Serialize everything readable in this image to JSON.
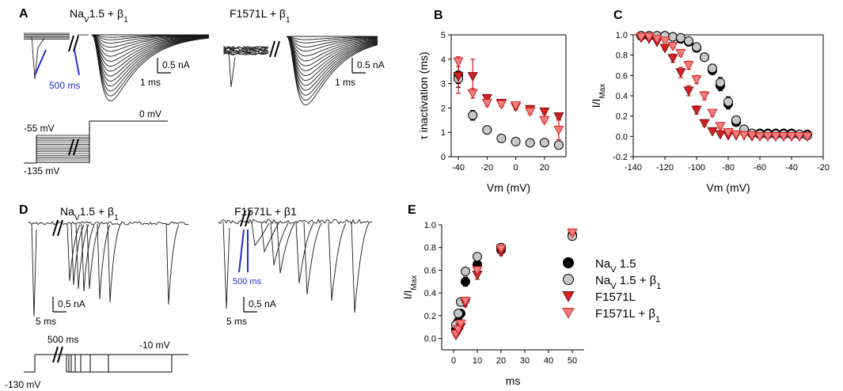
{
  "colors": {
    "black": "#000000",
    "gray": "#c8c8c8",
    "red": "#d42020",
    "pink": "#f08080",
    "trace": "#1a1a1a",
    "blue": "#1f2fd0",
    "errorbar_red": "#cc2020"
  },
  "panelA": {
    "letter": "A",
    "left_title": {
      "main": "Na",
      "sub": "V",
      "rest": "1.5 + β",
      "sub2": "1"
    },
    "right_title": {
      "main": "F1571L + β",
      "sub": "1"
    },
    "scale_current": "0.5 nA",
    "scale_time": "1 ms",
    "gap_label": "500 ms",
    "protocol_labels": {
      "test": "0 mV",
      "top_prepulse": "-55 mV",
      "bottom_prepulse": "-135 mV"
    }
  },
  "panelD": {
    "letter": "D",
    "left_title": {
      "main": "Na",
      "sub": "V",
      "rest": "1.5 + β",
      "sub2": "1"
    },
    "right_title": {
      "main": "F1571L + β1"
    },
    "scale_current": "0,5 nA",
    "scale_time": "5 ms",
    "gap_label": "500 ms",
    "protocol_labels": {
      "prepulse": "500 ms",
      "test": "-10 mV",
      "hold": "-130 mV"
    }
  },
  "chart_data": [
    {
      "id": "B",
      "letter": "B",
      "type": "scatter",
      "xlabel": "Vm (mV)",
      "ylabel": "τ inactivation (ms)",
      "xlim": [
        -45,
        35
      ],
      "ylim": [
        0,
        5
      ],
      "xticks": [
        -40,
        -20,
        0,
        20
      ],
      "yticks": [
        0,
        1,
        2,
        3,
        4,
        5
      ],
      "series": [
        {
          "name": "NaV 1.5",
          "marker": "circle",
          "fill": "black",
          "x": [
            -40
          ],
          "y": [
            3.35
          ],
          "err": [
            0.5
          ]
        },
        {
          "name": "NaV 1.5 + β1",
          "marker": "circle",
          "fill": "gray",
          "x": [
            -40,
            -30,
            -20,
            -10,
            0,
            10,
            20,
            30
          ],
          "y": [
            3.2,
            1.7,
            1.1,
            0.75,
            0.62,
            0.57,
            0.58,
            0.48
          ],
          "err": [
            0.2,
            0.2,
            0.12,
            0.08,
            0.06,
            0.05,
            0.05,
            0.05
          ]
        },
        {
          "name": "F1571L",
          "marker": "tri-down",
          "fill": "red",
          "x": [
            -40,
            -30,
            -20,
            -10,
            0,
            10,
            20,
            30
          ],
          "y": [
            3.3,
            3.3,
            2.4,
            2.2,
            2.05,
            1.95,
            1.85,
            1.65
          ],
          "err": [
            0.7,
            0.7,
            0.15,
            0.12,
            0.12,
            0.1,
            0.1,
            0.1
          ]
        },
        {
          "name": "F1571L + β1",
          "marker": "tri-down",
          "fill": "pink",
          "x": [
            -40,
            -30,
            -20,
            -10,
            0,
            10,
            20,
            30
          ],
          "y": [
            3.9,
            2.6,
            2.2,
            2.15,
            2.1,
            1.85,
            1.5,
            1.1
          ],
          "err": [
            0.2,
            0.2,
            0.12,
            0.1,
            0.1,
            0.1,
            0.1,
            0.4
          ]
        }
      ]
    },
    {
      "id": "C",
      "letter": "C",
      "type": "scatter",
      "xlabel": "Vm (mV)",
      "ylabel": "I/I",
      "ylabel_sub": "Max",
      "xlim": [
        -140,
        -20
      ],
      "ylim": [
        -0.2,
        1.0
      ],
      "xticks": [
        -140,
        -120,
        -100,
        -80,
        -60,
        -40,
        -20
      ],
      "yticks": [
        -0.2,
        0.0,
        0.2,
        0.4,
        0.6,
        0.8,
        1.0
      ],
      "series": [
        {
          "name": "NaV 1.5",
          "marker": "circle",
          "fill": "black",
          "x": [
            -135,
            -130,
            -125,
            -120,
            -115,
            -110,
            -105,
            -100,
            -95,
            -90,
            -85,
            -80,
            -75,
            -70,
            -65,
            -60,
            -55,
            -50,
            -45,
            -40,
            -35,
            -30
          ],
          "y": [
            0.99,
            0.99,
            0.99,
            0.99,
            0.98,
            0.96,
            0.93,
            0.87,
            0.78,
            0.65,
            0.5,
            0.32,
            0.14,
            0.06,
            0.03,
            0.03,
            0.03,
            0.03,
            0.03,
            0.03,
            0.02,
            0.02
          ],
          "err": [
            0,
            0,
            0,
            0,
            0,
            0,
            0.01,
            0.02,
            0.03,
            0.04,
            0.05,
            0.05,
            0.03,
            0.01,
            0,
            0,
            0,
            0,
            0,
            0,
            0,
            0
          ]
        },
        {
          "name": "NaV 1.5 + β1",
          "marker": "circle",
          "fill": "gray",
          "x": [
            -135,
            -130,
            -125,
            -120,
            -115,
            -110,
            -105,
            -100,
            -95,
            -90,
            -85,
            -80,
            -75,
            -70,
            -65,
            -60,
            -55,
            -50,
            -45,
            -40,
            -35,
            -30
          ],
          "y": [
            0.99,
            0.99,
            0.99,
            0.99,
            0.98,
            0.97,
            0.94,
            0.88,
            0.78,
            0.67,
            0.53,
            0.34,
            0.16,
            0.07,
            0.03,
            0.02,
            0.02,
            0.02,
            0.02,
            0.02,
            0.02,
            0.01
          ],
          "err": [
            0,
            0,
            0,
            0,
            0,
            0,
            0.01,
            0.02,
            0.03,
            0.04,
            0.05,
            0.05,
            0.03,
            0.01,
            0,
            0,
            0,
            0,
            0,
            0,
            0,
            0
          ]
        },
        {
          "name": "F1571L",
          "marker": "tri-down",
          "fill": "red",
          "x": [
            -135,
            -130,
            -125,
            -120,
            -115,
            -110,
            -105,
            -100,
            -95,
            -90,
            -85,
            -80,
            -75,
            -70,
            -65,
            -60,
            -55,
            -50,
            -45,
            -40,
            -35,
            -30
          ],
          "y": [
            0.97,
            0.96,
            0.93,
            0.87,
            0.77,
            0.63,
            0.45,
            0.26,
            0.13,
            0.05,
            0.02,
            0.01,
            0.01,
            0.01,
            0.0,
            0.0,
            0.0,
            0.0,
            0.0,
            0.0,
            0.0,
            0.0
          ],
          "err": [
            0,
            0,
            0.01,
            0.02,
            0.04,
            0.05,
            0.05,
            0.04,
            0.03,
            0.01,
            0,
            0,
            0,
            0,
            0,
            0,
            0,
            0,
            0,
            0,
            0,
            0
          ]
        },
        {
          "name": "F1571L + β1",
          "marker": "tri-down",
          "fill": "pink",
          "x": [
            -135,
            -130,
            -125,
            -120,
            -115,
            -110,
            -105,
            -100,
            -95,
            -90,
            -85,
            -80,
            -75,
            -70,
            -65,
            -60,
            -55,
            -50,
            -45,
            -40,
            -35,
            -30
          ],
          "y": [
            0.98,
            0.98,
            0.96,
            0.94,
            0.89,
            0.82,
            0.7,
            0.56,
            0.4,
            0.23,
            0.1,
            0.04,
            0.02,
            0.01,
            0.01,
            0.0,
            0.0,
            0.0,
            0.0,
            0.0,
            0.0,
            0.0
          ],
          "err": [
            0,
            0,
            0.01,
            0.01,
            0.02,
            0.03,
            0.04,
            0.04,
            0.04,
            0.03,
            0.02,
            0.01,
            0,
            0,
            0,
            0,
            0,
            0,
            0,
            0,
            0,
            0
          ]
        }
      ]
    },
    {
      "id": "E",
      "letter": "E",
      "type": "scatter",
      "xlabel": "ms",
      "ylabel": "I/I",
      "ylabel_sub": "Max",
      "xlim": [
        -5,
        55
      ],
      "ylim": [
        -0.1,
        1.0
      ],
      "xticks": [
        0,
        10,
        20,
        30,
        40,
        50
      ],
      "yticks": [
        0.0,
        0.2,
        0.4,
        0.6,
        0.8,
        1.0
      ],
      "series": [
        {
          "name": "NaV 1.5",
          "marker": "circle",
          "fill": "black",
          "x": [
            1,
            2,
            3,
            5,
            10,
            20,
            50
          ],
          "y": [
            0.08,
            0.15,
            0.22,
            0.5,
            0.65,
            0.78,
            0.91
          ],
          "err": [
            0.02,
            0.02,
            0.03,
            0.04,
            0.04,
            0.03,
            0.02
          ]
        },
        {
          "name": "NaV 1.5 + β1",
          "marker": "circle",
          "fill": "gray",
          "x": [
            1,
            2,
            3,
            5,
            10,
            20,
            50
          ],
          "y": [
            0.12,
            0.22,
            0.32,
            0.59,
            0.72,
            0.8,
            0.9
          ],
          "err": [
            0.02,
            0.02,
            0.03,
            0.03,
            0.03,
            0.03,
            0.02
          ]
        },
        {
          "name": "F1571L",
          "marker": "tri-down",
          "fill": "red",
          "x": [
            1,
            2,
            3,
            5,
            10,
            20,
            50
          ],
          "y": [
            0.03,
            0.06,
            0.1,
            0.31,
            0.56,
            0.76,
            0.93
          ],
          "err": [
            0.01,
            0.02,
            0.02,
            0.03,
            0.04,
            0.03,
            0.02
          ]
        },
        {
          "name": "F1571L + β1",
          "marker": "tri-down",
          "fill": "pink",
          "x": [
            1,
            2,
            3,
            5,
            10,
            20,
            50
          ],
          "y": [
            0.04,
            0.08,
            0.13,
            0.33,
            0.6,
            0.79,
            0.93
          ],
          "err": [
            0.01,
            0.02,
            0.02,
            0.03,
            0.03,
            0.03,
            0.02
          ]
        }
      ],
      "legend": [
        {
          "marker": "circle",
          "fill": "black",
          "main": "Na",
          "sub": "V",
          "rest": " 1.5",
          "sub2": ""
        },
        {
          "marker": "circle",
          "fill": "gray",
          "main": "Na",
          "sub": "V",
          "rest": " 1.5 + β",
          "sub2": "1"
        },
        {
          "marker": "tri-down",
          "fill": "red",
          "main": "F1571L",
          "sub": "",
          "rest": "",
          "sub2": ""
        },
        {
          "marker": "tri-down",
          "fill": "pink",
          "main": "F1571L + β",
          "sub": "",
          "rest": "",
          "sub2": "1"
        }
      ]
    }
  ]
}
